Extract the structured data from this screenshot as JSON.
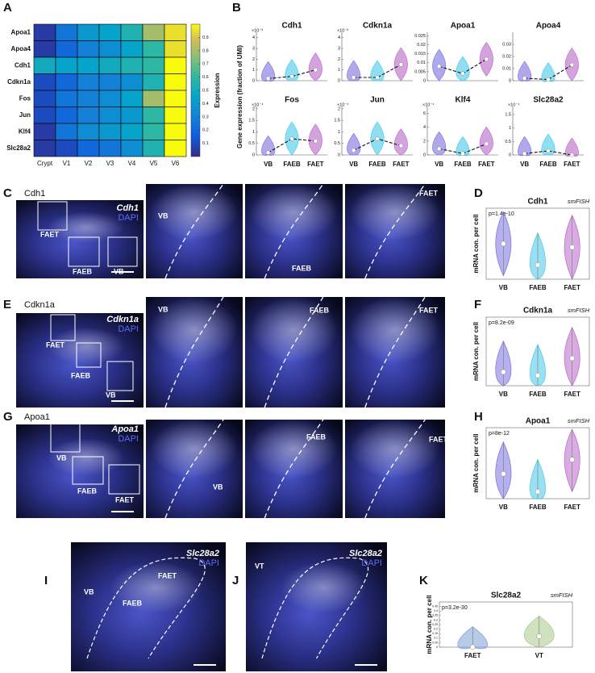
{
  "chart_data": [
    {
      "type": "heatmap",
      "label": "A",
      "rows": [
        "Apoa1",
        "Apoa4",
        "Cdh1",
        "Cdkn1a",
        "Fos",
        "Jun",
        "Klf4",
        "Slc28a2"
      ],
      "columns": [
        "Crypt",
        "V1",
        "V2",
        "V3",
        "V4",
        "V5",
        "V6"
      ],
      "values": [
        [
          0.05,
          0.25,
          0.4,
          0.45,
          0.55,
          0.8,
          0.95
        ],
        [
          0.05,
          0.2,
          0.3,
          0.35,
          0.45,
          0.6,
          0.95
        ],
        [
          0.5,
          0.45,
          0.45,
          0.5,
          0.55,
          0.6,
          1.0
        ],
        [
          0.1,
          0.2,
          0.3,
          0.3,
          0.35,
          0.55,
          1.0
        ],
        [
          0.1,
          0.25,
          0.3,
          0.35,
          0.45,
          0.8,
          1.0
        ],
        [
          0.1,
          0.2,
          0.3,
          0.35,
          0.4,
          0.6,
          1.0
        ],
        [
          0.05,
          0.25,
          0.35,
          0.4,
          0.45,
          0.6,
          1.0
        ],
        [
          0.05,
          0.1,
          0.2,
          0.25,
          0.35,
          0.55,
          1.0
        ]
      ],
      "clim": [
        0,
        1
      ],
      "colorbar_ticks": [
        0.1,
        0.2,
        0.3,
        0.4,
        0.5,
        0.6,
        0.7,
        0.8,
        0.9
      ],
      "colorbar_label": "Expression"
    },
    {
      "type": "violin_grid",
      "label": "B",
      "y_label": "Gene expression (fraction of UMI)",
      "categories": [
        "VB",
        "FAEB",
        "FAET"
      ],
      "colors": [
        "#7a6fe0",
        "#45c8e8",
        "#b866c8"
      ],
      "plots": [
        {
          "title": "Cdh1",
          "scale": "×10⁻³",
          "ylim": [
            0,
            4.5
          ],
          "yticks": [
            0,
            1,
            2,
            3,
            4
          ],
          "values": [
            0.2,
            0.4,
            1.0
          ]
        },
        {
          "title": "Cdkn1a",
          "scale": "×10⁻³",
          "ylim": [
            0,
            4.5
          ],
          "yticks": [
            0,
            1,
            2,
            3,
            4
          ],
          "values": [
            0.3,
            0.3,
            1.5
          ]
        },
        {
          "title": "Apoa1",
          "ylim": [
            0,
            0.027
          ],
          "yticks": [
            0,
            0.005,
            0.01,
            0.015,
            0.02,
            0.025
          ],
          "values": [
            0.008,
            0.004,
            0.012
          ]
        },
        {
          "title": "Apoa4",
          "ylim": [
            0,
            0.04
          ],
          "yticks": [
            0,
            0.01,
            0.02,
            0.03
          ],
          "values": [
            0.002,
            0.001,
            0.013
          ]
        },
        {
          "title": "Fos",
          "scale": "×10⁻⁴",
          "ylim": [
            0,
            2.1
          ],
          "yticks": [
            0,
            0.5,
            1,
            1.5,
            2
          ],
          "values": [
            0.1,
            0.7,
            0.6
          ]
        },
        {
          "title": "Jun",
          "scale": "×10⁻⁴",
          "ylim": [
            0,
            2.1
          ],
          "yticks": [
            0,
            0.5,
            1,
            1.5,
            2
          ],
          "values": [
            0.2,
            0.7,
            0.4
          ]
        },
        {
          "title": "Klf4",
          "scale": "×10⁻⁴",
          "ylim": [
            0,
            7
          ],
          "yticks": [
            0,
            2,
            4,
            6
          ],
          "values": [
            0.9,
            0.2,
            1.6
          ]
        },
        {
          "title": "Slc28a2",
          "scale": "×10⁻⁴",
          "ylim": [
            0,
            1.8
          ],
          "yticks": [
            0,
            0.5,
            1,
            1.5
          ],
          "values": [
            0.05,
            0.15,
            0.0
          ]
        }
      ]
    },
    {
      "type": "violin",
      "label": "D",
      "title": "Cdh1",
      "method": "smFISH",
      "p_value": "p=1.4e-10",
      "y_label": "mRNA con. per cell",
      "categories": [
        "VB",
        "FAEB",
        "FAET"
      ],
      "colors": [
        "#7a6fe0",
        "#45c8e8",
        "#b866c8"
      ],
      "ylim": [
        0,
        1
      ],
      "values": [
        0.5,
        0.2,
        0.45
      ]
    },
    {
      "type": "violin",
      "label": "F",
      "title": "Cdkn1a",
      "method": "smFISH",
      "p_value": "p=8.2e-09",
      "y_label": "mRNA con. per cell",
      "categories": [
        "VB",
        "FAEB",
        "FAET"
      ],
      "colors": [
        "#7a6fe0",
        "#45c8e8",
        "#b866c8"
      ],
      "ylim": [
        0,
        1
      ],
      "values": [
        0.2,
        0.15,
        0.4
      ]
    },
    {
      "type": "violin",
      "label": "H",
      "title": "Apoa1",
      "method": "smFISH",
      "p_value": "p=8e-12",
      "y_label": "mRNA con. per cell",
      "categories": [
        "VB",
        "FAEB",
        "FAET"
      ],
      "colors": [
        "#7a6fe0",
        "#45c8e8",
        "#b866c8"
      ],
      "ylim": [
        0,
        1
      ],
      "values": [
        0.35,
        0.1,
        0.55
      ]
    },
    {
      "type": "violin",
      "label": "K",
      "title": "Slc28a2",
      "method": "smFISH",
      "p_value": "p=3.2e-30",
      "y_label": "mRNA con. per cell",
      "categories": [
        "FAET",
        "VT"
      ],
      "colors": [
        "#7b9fd6",
        "#a8c88a"
      ],
      "ylim": [
        0,
        0.5
      ],
      "yticks": [
        0,
        0.05,
        0.1,
        0.15,
        0.2,
        0.25,
        0.3,
        0.35,
        0.4,
        0.45
      ],
      "values": [
        0.001,
        0.12
      ]
    }
  ],
  "images": [
    {
      "label": "C",
      "gene": "Cdh1",
      "overlay_gene": "Cdh1",
      "stain": "DAPI",
      "regions": [
        "FAET",
        "FAEB",
        "VB"
      ],
      "zooms": [
        "VB",
        "FAEB",
        "FAET"
      ]
    },
    {
      "label": "E",
      "gene": "Cdkn1a",
      "overlay_gene": "Cdkn1a",
      "stain": "DAPI",
      "regions": [
        "FAET",
        "FAEB",
        "VB"
      ],
      "zooms": [
        "VB",
        "FAEB",
        "FAET"
      ]
    },
    {
      "label": "G",
      "gene": "Apoa1",
      "overlay_gene": "Apoa1",
      "stain": "DAPI",
      "regions": [
        "VB",
        "FAEB",
        "FAET"
      ],
      "zooms": [
        "VB",
        "FAEB",
        "FAET"
      ]
    },
    {
      "label": "I",
      "overlay_gene": "Slc28a2",
      "stain": "DAPI",
      "regions": [
        "FAET",
        "VB",
        "FAEB"
      ]
    },
    {
      "label": "J",
      "overlay_gene": "Slc28a2",
      "stain": "DAPI",
      "regions": [
        "VT"
      ]
    }
  ]
}
